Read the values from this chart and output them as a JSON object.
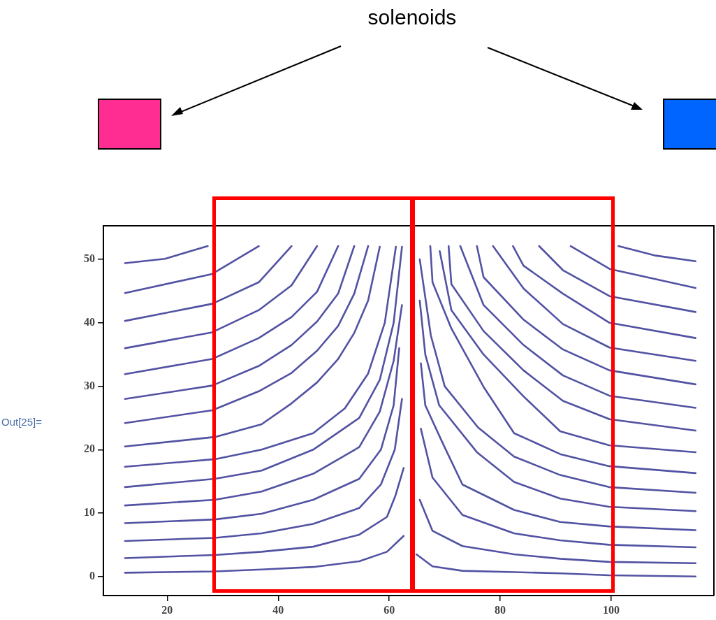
{
  "chart_data": {
    "type": "line",
    "annotations": [
      "solenoids",
      "Out[25]="
    ],
    "xlim": [
      8.5,
      118.5
    ],
    "ylim": [
      -3,
      55.3
    ],
    "xticks": [
      20,
      40,
      60,
      80,
      100
    ],
    "yticks": [
      0,
      10,
      20,
      30,
      40,
      50
    ],
    "grid": false,
    "legend": false,
    "marker": "none",
    "line_style": "solid",
    "tick_labels": "xy",
    "series": [
      {
        "color": "#5252a3",
        "x": [
          12.4,
          28.6,
          37,
          46.3,
          54.6,
          59.6,
          62.6
        ],
        "values": [
          0.6,
          0.8,
          1.1,
          1.5,
          2.4,
          3.9,
          6.4
        ]
      },
      {
        "color": "#5252a3",
        "x": [
          12.4,
          28.6,
          37,
          46.3,
          54.6,
          59.6,
          61.1,
          62.6
        ],
        "values": [
          2.9,
          3.4,
          3.9,
          4.7,
          6.6,
          9.4,
          12.7,
          17.1
        ]
      },
      {
        "color": "#5252a3",
        "x": [
          12.4,
          28.6,
          37,
          46.3,
          54.6,
          58.5,
          61,
          62.3
        ],
        "values": [
          5.6,
          6.1,
          6.8,
          8.3,
          10.8,
          14.5,
          20,
          28
        ]
      },
      {
        "color": "#5252a3",
        "x": [
          12.4,
          28.6,
          37,
          46.3,
          54.6,
          58.5,
          60.8,
          61.8
        ],
        "values": [
          8.4,
          9,
          9.9,
          12.1,
          15.4,
          20,
          27,
          36
        ]
      },
      {
        "color": "#5252a3",
        "x": [
          12.4,
          28.6,
          37,
          46.3,
          54.6,
          58.3,
          60.8,
          62.3
        ],
        "values": [
          11.2,
          12.1,
          13.4,
          16.2,
          20.4,
          26,
          34,
          42.8
        ]
      },
      {
        "color": "#5252a3",
        "x": [
          12.4,
          28.6,
          37,
          46.3,
          54.6,
          58.3,
          60.8,
          62.3
        ],
        "values": [
          14.1,
          15.4,
          16.7,
          20,
          25,
          31,
          40,
          52
        ]
      },
      {
        "color": "#5252a3",
        "x": [
          12.4,
          28.6,
          37,
          46.3,
          52,
          56.2,
          59.2,
          61.2
        ],
        "values": [
          17.3,
          18.5,
          20,
          22.6,
          26.5,
          32,
          40,
          52
        ]
      },
      {
        "color": "#5252a3",
        "x": [
          12.4,
          28.6,
          37,
          42.4,
          47,
          50.8,
          53.7,
          56.2,
          58.3
        ],
        "values": [
          20.5,
          22,
          24,
          27.3,
          30.6,
          34.3,
          38.4,
          43.5,
          52
        ]
      },
      {
        "color": "#5252a3",
        "x": [
          12.4,
          28.1,
          36.5,
          42.4,
          47,
          50.8,
          53.7,
          56.2
        ],
        "values": [
          24.2,
          26.2,
          29.2,
          32.1,
          35.6,
          39.5,
          44.6,
          52.1
        ]
      },
      {
        "color": "#5252a3",
        "x": [
          12.4,
          28.1,
          36.5,
          42.4,
          47,
          50.8,
          53.7
        ],
        "values": [
          28,
          30.1,
          33.2,
          36.5,
          40.2,
          44.6,
          52.1
        ]
      },
      {
        "color": "#5252a3",
        "x": [
          12.4,
          28.1,
          36.5,
          42.4,
          47,
          50.8
        ],
        "values": [
          31.9,
          34.3,
          37.6,
          40.9,
          44.9,
          52.1
        ]
      },
      {
        "color": "#5252a3",
        "x": [
          12.4,
          28.1,
          36.5,
          42.4,
          47
        ],
        "values": [
          36,
          38.5,
          42,
          45.9,
          52.1
        ]
      },
      {
        "color": "#5252a3",
        "x": [
          12.4,
          28.1,
          36.5,
          42.4
        ],
        "values": [
          40.3,
          43,
          46.4,
          52.1
        ]
      },
      {
        "color": "#5252a3",
        "x": [
          12.4,
          28.1,
          36.5
        ],
        "values": [
          44.7,
          47.7,
          52.1
        ]
      },
      {
        "color": "#5252a3",
        "x": [
          12.4,
          19.6,
          27.3
        ],
        "values": [
          49.4,
          50.1,
          52.1
        ]
      },
      {
        "color": "#5252a3",
        "x": [
          115.2,
          99.6,
          90.8,
          82.5,
          73.2,
          67.8,
          64.9
        ],
        "values": [
          0,
          0.2,
          0.5,
          0.7,
          0.9,
          1.6,
          3.5
        ]
      },
      {
        "color": "#5252a3",
        "x": [
          115.2,
          99.6,
          90.8,
          82.5,
          73.2,
          67.8,
          65.5
        ],
        "values": [
          2.1,
          2.3,
          2.8,
          3.5,
          4.8,
          7.2,
          12.1
        ]
      },
      {
        "color": "#5252a3",
        "x": [
          115.2,
          99.6,
          90.8,
          82.5,
          73.2,
          67.8,
          65.7
        ],
        "values": [
          4.6,
          5,
          5.7,
          6.8,
          9.7,
          15.6,
          23.3
        ]
      },
      {
        "color": "#5252a3",
        "x": [
          115.2,
          99.6,
          90.8,
          82.5,
          73.2,
          69.6,
          66.5,
          65.7
        ],
        "values": [
          7.3,
          7.9,
          8.6,
          10.5,
          14.5,
          21.1,
          27,
          33.6
        ]
      },
      {
        "color": "#5252a3",
        "x": [
          115.2,
          99.6,
          90.8,
          82.5,
          75.8,
          69,
          66.5,
          65.5
        ],
        "values": [
          10.3,
          11,
          12.3,
          14.9,
          19.6,
          27,
          35,
          43.5
        ]
      },
      {
        "color": "#5252a3",
        "x": [
          115.2,
          99.6,
          90.8,
          82.5,
          76,
          70,
          67.5,
          65.5
        ],
        "values": [
          13.2,
          14.1,
          16,
          18.9,
          23.5,
          30,
          38,
          50
        ]
      },
      {
        "color": "#5252a3",
        "x": [
          115.2,
          99.6,
          90.8,
          82.5,
          77,
          71.2,
          67.8,
          67.4
        ],
        "values": [
          16.3,
          17.4,
          19.3,
          22.6,
          29.9,
          39.1,
          46.4,
          52.1
        ]
      },
      {
        "color": "#5252a3",
        "x": [
          115.2,
          99.6,
          90.8,
          84.2,
          77,
          71.2,
          69.1
        ],
        "values": [
          19.6,
          20.7,
          22.9,
          28.4,
          35,
          42,
          51.3
        ]
      },
      {
        "color": "#5252a3",
        "x": [
          115.2,
          99.7,
          91.3,
          84.2,
          77,
          71.2,
          70.7
        ],
        "values": [
          23,
          24.8,
          27.7,
          32.5,
          38.7,
          46.1,
          52.1
        ]
      },
      {
        "color": "#5252a3",
        "x": [
          115.2,
          99.7,
          91.3,
          84.2,
          77,
          72.8
        ],
        "values": [
          26.6,
          28.5,
          31.7,
          36.5,
          42.8,
          52.1
        ]
      },
      {
        "color": "#5252a3",
        "x": [
          115.2,
          99.7,
          91.3,
          84.2,
          77,
          75.8
        ],
        "values": [
          30.3,
          32.5,
          35.8,
          40.5,
          47.2,
          52.1
        ]
      },
      {
        "color": "#5252a3",
        "x": [
          115.2,
          99.7,
          91.3,
          84.2,
          78.7
        ],
        "values": [
          34,
          36.1,
          39.8,
          45.4,
          52.1
        ]
      },
      {
        "color": "#5252a3",
        "x": [
          115.2,
          99.7,
          91.3,
          84.2,
          82.3
        ],
        "values": [
          37.6,
          40,
          44.6,
          49,
          52.1
        ]
      },
      {
        "color": "#5252a3",
        "x": [
          115.2,
          99.7,
          91.3,
          87
        ],
        "values": [
          41.7,
          44.2,
          48.3,
          52.1
        ]
      },
      {
        "color": "#5252a3",
        "x": [
          115.2,
          99.7,
          92.7
        ],
        "values": [
          45.5,
          48.5,
          52.1
        ]
      },
      {
        "color": "#5252a3",
        "x": [
          115.2,
          108,
          101.3
        ],
        "values": [
          49.7,
          50.6,
          52.1
        ]
      }
    ]
  }
}
